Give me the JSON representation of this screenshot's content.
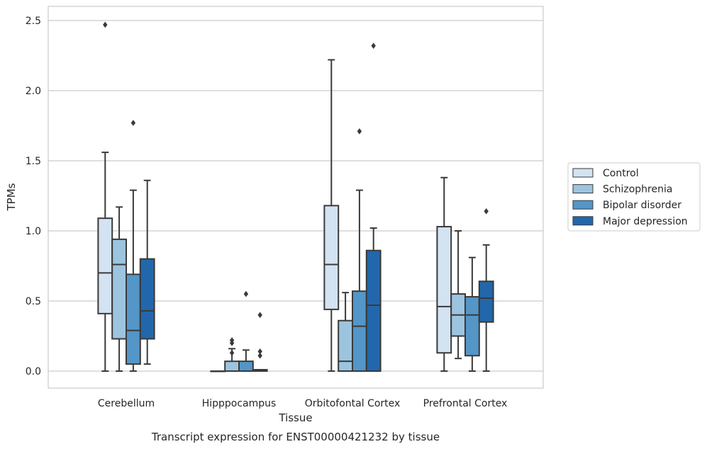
{
  "chart_data": {
    "type": "box",
    "xlabel": "Tissue",
    "ylabel": "TPMs",
    "caption": "Transcript expression for ENST00000421232 by tissue",
    "ylim": [
      -0.12,
      2.6
    ],
    "yticks": [
      0.0,
      0.5,
      1.0,
      1.5,
      2.0,
      2.5
    ],
    "ytick_labels": [
      "0.0",
      "0.5",
      "1.0",
      "1.5",
      "2.0",
      "2.5"
    ],
    "grid": "horizontal",
    "legend_position": "right",
    "categories": [
      "Cerebellum",
      "Hipppocampus",
      "Orbitofontal Cortex",
      "Prefrontal Cortex"
    ],
    "series": [
      {
        "name": "Control",
        "color": "#d3e3f2",
        "boxes": [
          {
            "whisker_low": 0.0,
            "q1": 0.41,
            "median": 0.7,
            "q3": 1.09,
            "whisker_high": 1.56,
            "outliers": [
              2.47
            ]
          },
          {
            "whisker_low": 0.0,
            "q1": 0.0,
            "median": 0.0,
            "q3": 0.0,
            "whisker_high": 0.0,
            "outliers": []
          },
          {
            "whisker_low": 0.0,
            "q1": 0.44,
            "median": 0.76,
            "q3": 1.18,
            "whisker_high": 2.22,
            "outliers": []
          },
          {
            "whisker_low": 0.0,
            "q1": 0.13,
            "median": 0.46,
            "q3": 1.03,
            "whisker_high": 1.38,
            "outliers": []
          }
        ]
      },
      {
        "name": "Schizophrenia",
        "color": "#9dc4df",
        "boxes": [
          {
            "whisker_low": 0.0,
            "q1": 0.23,
            "median": 0.76,
            "q3": 0.94,
            "whisker_high": 1.17,
            "outliers": []
          },
          {
            "whisker_low": 0.0,
            "q1": 0.0,
            "median": 0.0,
            "q3": 0.07,
            "whisker_high": 0.16,
            "outliers": [
              0.22,
              0.2,
              0.13
            ]
          },
          {
            "whisker_low": 0.0,
            "q1": 0.0,
            "median": 0.07,
            "q3": 0.36,
            "whisker_high": 0.56,
            "outliers": []
          },
          {
            "whisker_low": 0.09,
            "q1": 0.25,
            "median": 0.4,
            "q3": 0.55,
            "whisker_high": 1.0,
            "outliers": []
          }
        ]
      },
      {
        "name": "Bipolar disorder",
        "color": "#5496c7",
        "boxes": [
          {
            "whisker_low": 0.0,
            "q1": 0.05,
            "median": 0.29,
            "q3": 0.69,
            "whisker_high": 1.29,
            "outliers": [
              1.77
            ]
          },
          {
            "whisker_low": 0.0,
            "q1": 0.0,
            "median": 0.0,
            "q3": 0.07,
            "whisker_high": 0.15,
            "outliers": [
              0.55
            ]
          },
          {
            "whisker_low": 0.0,
            "q1": 0.0,
            "median": 0.32,
            "q3": 0.57,
            "whisker_high": 1.29,
            "outliers": [
              1.71
            ]
          },
          {
            "whisker_low": 0.0,
            "q1": 0.11,
            "median": 0.4,
            "q3": 0.53,
            "whisker_high": 0.81,
            "outliers": []
          }
        ]
      },
      {
        "name": "Major depression",
        "color": "#2267ab",
        "boxes": [
          {
            "whisker_low": 0.05,
            "q1": 0.23,
            "median": 0.43,
            "q3": 0.8,
            "whisker_high": 1.36,
            "outliers": []
          },
          {
            "whisker_low": 0.0,
            "q1": 0.0,
            "median": 0.0,
            "q3": 0.01,
            "whisker_high": 0.01,
            "outliers": [
              0.4,
              0.14,
              0.11
            ]
          },
          {
            "whisker_low": 0.0,
            "q1": 0.0,
            "median": 0.47,
            "q3": 0.86,
            "whisker_high": 1.02,
            "outliers": [
              2.32
            ]
          },
          {
            "whisker_low": 0.0,
            "q1": 0.35,
            "median": 0.52,
            "q3": 0.64,
            "whisker_high": 0.9,
            "outliers": [
              1.14
            ]
          }
        ]
      }
    ]
  }
}
